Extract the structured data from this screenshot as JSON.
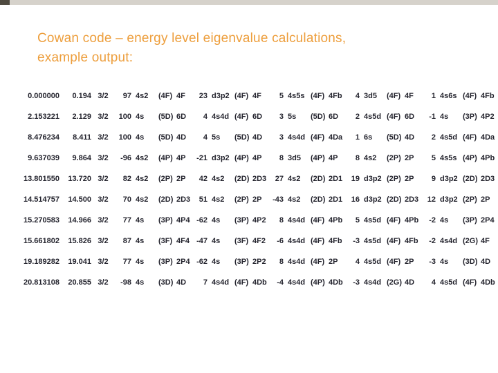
{
  "slide": {
    "title_line1": "Cowan code – energy level eigenvalue  calculations,",
    "title_line2": "example output:"
  },
  "colors": {
    "title_text": "#ED9E3C",
    "body_text": "#24242E",
    "top_strip": "#D6D2CB",
    "corner_square": "#4F4A40",
    "background": "#FFFFFF"
  },
  "table": {
    "rows": [
      {
        "eigenvalue": "0.000000",
        "energy": "0.194",
        "j": "3/2",
        "components": [
          {
            "pct": "97",
            "config": "4s2",
            "parent": "(4F)",
            "term": "4F"
          },
          {
            "pct": "23",
            "config": "d3p2",
            "parent": "(4F)",
            "term": "4F"
          },
          {
            "pct": "5",
            "config": "4s5s",
            "parent": "(4F)",
            "term": "4Fb"
          },
          {
            "pct": "4",
            "config": "3d5",
            "parent": "(4F)",
            "term": "4F"
          },
          {
            "pct": "1",
            "config": "4s6s",
            "parent": "(4F)",
            "term": "4Fb"
          }
        ]
      },
      {
        "eigenvalue": "2.153221",
        "energy": "2.129",
        "j": "3/2",
        "components": [
          {
            "pct": "100",
            "config": "4s",
            "parent": "(5D)",
            "term": "6D"
          },
          {
            "pct": "4",
            "config": "4s4d",
            "parent": "(4F)",
            "term": "6D"
          },
          {
            "pct": "3",
            "config": "5s",
            "parent": "(5D)",
            "term": "6D"
          },
          {
            "pct": "2",
            "config": "4s5d",
            "parent": "(4F)",
            "term": "6D"
          },
          {
            "pct": "-1",
            "config": "4s",
            "parent": "(3P)",
            "term": "4P2"
          }
        ]
      },
      {
        "eigenvalue": "8.476234",
        "energy": "8.411",
        "j": "3/2",
        "components": [
          {
            "pct": "100",
            "config": "4s",
            "parent": "(5D)",
            "term": "4D"
          },
          {
            "pct": "4",
            "config": "5s",
            "parent": "(5D)",
            "term": "4D"
          },
          {
            "pct": "3",
            "config": "4s4d",
            "parent": "(4F)",
            "term": "4Da"
          },
          {
            "pct": "1",
            "config": "6s",
            "parent": "(5D)",
            "term": "4D"
          },
          {
            "pct": "2",
            "config": "4s5d",
            "parent": "(4F)",
            "term": "4Da"
          }
        ]
      },
      {
        "eigenvalue": "9.637039",
        "energy": "9.864",
        "j": "3/2",
        "components": [
          {
            "pct": "-96",
            "config": "4s2",
            "parent": "(4P)",
            "term": "4P"
          },
          {
            "pct": "-21",
            "config": "d3p2",
            "parent": "(4P)",
            "term": "4P"
          },
          {
            "pct": "8",
            "config": "3d5",
            "parent": "(4P)",
            "term": "4P"
          },
          {
            "pct": "8",
            "config": "4s2",
            "parent": "(2P)",
            "term": "2P"
          },
          {
            "pct": "5",
            "config": "4s5s",
            "parent": "(4P)",
            "term": "4Pb"
          }
        ]
      },
      {
        "eigenvalue": "13.801550",
        "energy": "13.720",
        "j": "3/2",
        "components": [
          {
            "pct": "82",
            "config": "4s2",
            "parent": "(2P)",
            "term": "2P"
          },
          {
            "pct": "42",
            "config": "4s2",
            "parent": "(2D)",
            "term": "2D3"
          },
          {
            "pct": "27",
            "config": "4s2",
            "parent": "(2D)",
            "term": "2D1"
          },
          {
            "pct": "19",
            "config": "d3p2",
            "parent": "(2P)",
            "term": "2P"
          },
          {
            "pct": "9",
            "config": "d3p2",
            "parent": "(2D)",
            "term": "2D3"
          }
        ]
      },
      {
        "eigenvalue": "14.514757",
        "energy": "14.500",
        "j": "3/2",
        "components": [
          {
            "pct": "70",
            "config": "4s2",
            "parent": "(2D)",
            "term": "2D3"
          },
          {
            "pct": "51",
            "config": "4s2",
            "parent": "(2P)",
            "term": "2P"
          },
          {
            "pct": "-43",
            "config": "4s2",
            "parent": "(2D)",
            "term": "2D1"
          },
          {
            "pct": "16",
            "config": "d3p2",
            "parent": "(2D)",
            "term": "2D3"
          },
          {
            "pct": "12",
            "config": "d3p2",
            "parent": "(2P)",
            "term": "2P"
          }
        ]
      },
      {
        "eigenvalue": "15.270583",
        "energy": "14.966",
        "j": "3/2",
        "components": [
          {
            "pct": "77",
            "config": "4s",
            "parent": "(3P)",
            "term": "4P4"
          },
          {
            "pct": "-62",
            "config": "4s",
            "parent": "(3P)",
            "term": "4P2"
          },
          {
            "pct": "8",
            "config": "4s4d",
            "parent": "(4F)",
            "term": "4Pb"
          },
          {
            "pct": "5",
            "config": "4s5d",
            "parent": "(4F)",
            "term": "4Pb"
          },
          {
            "pct": "-2",
            "config": "4s",
            "parent": "(3P)",
            "term": "2P4"
          }
        ]
      },
      {
        "eigenvalue": "15.661802",
        "energy": "15.826",
        "j": "3/2",
        "components": [
          {
            "pct": "87",
            "config": "4s",
            "parent": "(3F)",
            "term": "4F4"
          },
          {
            "pct": "-47",
            "config": "4s",
            "parent": "(3F)",
            "term": "4F2"
          },
          {
            "pct": "-6",
            "config": "4s4d",
            "parent": "(4F)",
            "term": "4Fb"
          },
          {
            "pct": "-3",
            "config": "4s5d",
            "parent": "(4F)",
            "term": "4Fb"
          },
          {
            "pct": "-2",
            "config": "4s4d",
            "parent": "(2G)",
            "term": "4F"
          }
        ]
      },
      {
        "eigenvalue": "19.189282",
        "energy": "19.041",
        "j": "3/2",
        "components": [
          {
            "pct": "77",
            "config": "4s",
            "parent": "(3P)",
            "term": "2P4"
          },
          {
            "pct": "-62",
            "config": "4s",
            "parent": "(3P)",
            "term": "2P2"
          },
          {
            "pct": "8",
            "config": "4s4d",
            "parent": "(4F)",
            "term": "2P"
          },
          {
            "pct": "4",
            "config": "4s5d",
            "parent": "(4F)",
            "term": "2P"
          },
          {
            "pct": "-3",
            "config": "4s",
            "parent": "(3D)",
            "term": "4D"
          }
        ]
      },
      {
        "eigenvalue": "20.813108",
        "energy": "20.855",
        "j": "3/2",
        "components": [
          {
            "pct": "-98",
            "config": "4s",
            "parent": "(3D)",
            "term": "4D"
          },
          {
            "pct": "7",
            "config": "4s4d",
            "parent": "(4F)",
            "term": "4Db"
          },
          {
            "pct": "-4",
            "config": "4s4d",
            "parent": "(4P)",
            "term": "4Db"
          },
          {
            "pct": "-3",
            "config": "4s4d",
            "parent": "(2G)",
            "term": "4D"
          },
          {
            "pct": "4",
            "config": "4s5d",
            "parent": "(4F)",
            "term": "4Db"
          }
        ]
      }
    ]
  }
}
